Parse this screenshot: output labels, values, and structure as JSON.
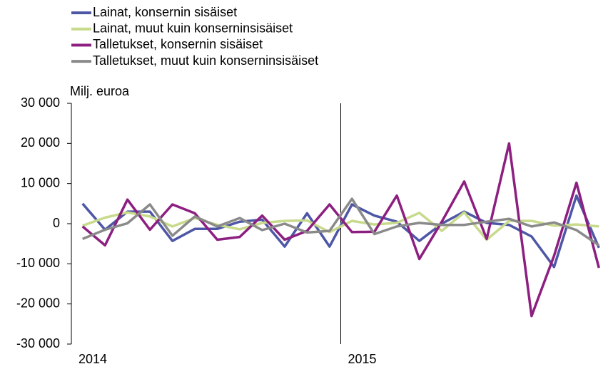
{
  "chart_data": {
    "type": "line",
    "y_label": "Milj. euroa",
    "categories": [
      "2014",
      null,
      null,
      null,
      null,
      null,
      null,
      null,
      null,
      null,
      null,
      null,
      "2015",
      null,
      null,
      null,
      null,
      null,
      null,
      null,
      null,
      null,
      null,
      null
    ],
    "series": [
      {
        "name": "Lainat, konsernin sisäiset",
        "color": "#4e57a6",
        "values": [
          5000,
          -1500,
          3000,
          3000,
          -4300,
          -1300,
          -1300,
          500,
          1000,
          -5700,
          2600,
          -5700,
          4800,
          2000,
          500,
          -4300,
          0,
          3000,
          200,
          -300,
          -3200,
          -10800,
          7000,
          -6000
        ]
      },
      {
        "name": "Lainat, muut kuin konserninsisäiset",
        "color": "#c8da8c",
        "values": [
          -500,
          1500,
          2800,
          1800,
          -700,
          1400,
          -300,
          -1400,
          200,
          700,
          800,
          -2100,
          700,
          -200,
          200,
          2700,
          -1800,
          2800,
          -4000,
          700,
          700,
          -500,
          -200,
          -700
        ]
      },
      {
        "name": "Talletukset, konsernin sisäiset",
        "color": "#8c1f80",
        "values": [
          -700,
          -5400,
          6000,
          -1500,
          4800,
          2600,
          -4000,
          -3300,
          2000,
          -4000,
          -1800,
          4800,
          -2100,
          -2000,
          7000,
          -8800,
          500,
          10500,
          -3800,
          20000,
          -23000,
          -8000,
          10200,
          -11000
        ]
      },
      {
        "name": "Talletukset, muut kuin konserninsisäiset",
        "color": "#8a8a8a",
        "values": [
          -3800,
          -1500,
          100,
          4800,
          -3000,
          1800,
          -700,
          1400,
          -1600,
          0,
          -2200,
          -1800,
          6200,
          -2600,
          -700,
          200,
          -300,
          -300,
          500,
          1200,
          -700,
          300,
          -1600,
          -5400
        ]
      }
    ],
    "ylim": [
      -30000,
      30000
    ],
    "yticks": [
      {
        "value": -30000,
        "label": "-30 000"
      },
      {
        "value": -20000,
        "label": "-20 000"
      },
      {
        "value": -10000,
        "label": "-10 000"
      },
      0,
      {
        "value": 10000,
        "label": "10 000"
      },
      {
        "value": 20000,
        "label": "20 000"
      },
      {
        "value": 30000,
        "label": "30 000"
      }
    ],
    "grid": false,
    "legend": "top-left"
  }
}
